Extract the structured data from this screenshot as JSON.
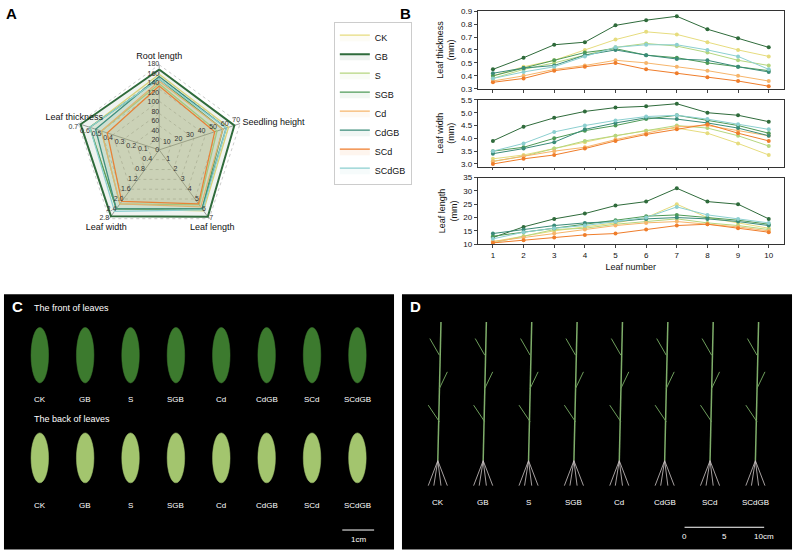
{
  "chart_data": [
    {
      "panel": "A",
      "type": "radar",
      "legend": "right",
      "axes": [
        {
          "name": "Root length",
          "lim": [
            0,
            180
          ],
          "ticks": [
            0,
            20,
            40,
            60,
            80,
            100,
            120,
            140,
            160,
            180
          ]
        },
        {
          "name": "Seedling height",
          "lim": [
            0,
            70
          ],
          "ticks": [
            10,
            20,
            30,
            40,
            50,
            60,
            70
          ]
        },
        {
          "name": "Leaf length",
          "lim": [
            0,
            7
          ],
          "ticks": [
            1,
            2,
            3,
            4,
            5,
            6,
            7
          ]
        },
        {
          "name": "Leaf width",
          "lim": [
            0,
            2.8
          ],
          "ticks": [
            0.4,
            0.8,
            1.2,
            1.6,
            {
              "value": 2,
              "label": "2.0"
            },
            2.4,
            2.8
          ]
        },
        {
          "name": "Leaf thickness",
          "lim": [
            0,
            0.7
          ],
          "ticks": [
            0.1,
            0.2,
            0.3,
            0.4,
            0.5,
            0.6,
            0.7
          ]
        }
      ],
      "series": [
        {
          "name": "CK",
          "color": "#e6dc7e",
          "values": [
            160,
            60,
            6.2,
            2.4,
            0.6
          ]
        },
        {
          "name": "GB",
          "color": "#2f6b3b",
          "values": [
            170,
            65,
            6.8,
            2.7,
            0.68
          ]
        },
        {
          "name": "S",
          "color": "#b5d67f",
          "values": [
            140,
            50,
            5.6,
            2.2,
            0.5
          ]
        },
        {
          "name": "SGB",
          "color": "#4e9a57",
          "values": [
            150,
            55,
            6.0,
            2.4,
            0.6
          ]
        },
        {
          "name": "Cd",
          "color": "#f6b56b",
          "values": [
            145,
            55,
            5.8,
            2.2,
            0.5
          ]
        },
        {
          "name": "CdGB",
          "color": "#3a8b78",
          "values": [
            155,
            58,
            6.0,
            2.4,
            0.55
          ]
        },
        {
          "name": "SCd",
          "color": "#ef7d2b",
          "values": [
            135,
            48,
            5.5,
            2.1,
            0.45
          ]
        },
        {
          "name": "SCdGB",
          "color": "#8ccfd0",
          "values": [
            150,
            58,
            6.1,
            2.5,
            0.6
          ]
        }
      ]
    },
    {
      "panel": "B",
      "type": "line",
      "marker": "circle",
      "x": [
        1,
        2,
        3,
        4,
        5,
        6,
        7,
        8,
        9,
        10
      ],
      "xlabel": "Leaf number",
      "xlim": [
        0.5,
        10.5
      ],
      "xticks": [
        1,
        2,
        3,
        4,
        5,
        6,
        7,
        8,
        9,
        10
      ],
      "subplots": [
        {
          "ylabel": "Leaf thickness (mm)",
          "ylim": [
            0.3,
            0.9
          ],
          "yticks": [
            0.3,
            0.4,
            0.5,
            0.6,
            0.7,
            0.8,
            0.9
          ],
          "series": [
            {
              "name": "CK",
              "color": "#e6dc7e",
              "values": [
                0.4,
                0.47,
                0.52,
                0.6,
                0.68,
                0.74,
                0.72,
                0.66,
                0.6,
                0.55
              ]
            },
            {
              "name": "GB",
              "color": "#2f6b3b",
              "values": [
                0.45,
                0.54,
                0.64,
                0.66,
                0.79,
                0.83,
                0.86,
                0.76,
                0.69,
                0.62
              ]
            },
            {
              "name": "S",
              "color": "#b5d67f",
              "values": [
                0.38,
                0.45,
                0.5,
                0.56,
                0.62,
                0.65,
                0.63,
                0.58,
                0.52,
                0.48
              ]
            },
            {
              "name": "SGB",
              "color": "#4e9a57",
              "values": [
                0.4,
                0.46,
                0.52,
                0.58,
                0.61,
                0.56,
                0.54,
                0.5,
                0.47,
                0.44
              ]
            },
            {
              "name": "Cd",
              "color": "#f6b56b",
              "values": [
                0.36,
                0.4,
                0.45,
                0.48,
                0.52,
                0.5,
                0.47,
                0.44,
                0.4,
                0.36
              ]
            },
            {
              "name": "CdGB",
              "color": "#3a8b78",
              "values": [
                0.42,
                0.46,
                0.48,
                0.56,
                0.6,
                0.56,
                0.53,
                0.52,
                0.47,
                0.43
              ]
            },
            {
              "name": "SCd",
              "color": "#ef7d2b",
              "values": [
                0.35,
                0.38,
                0.44,
                0.47,
                0.5,
                0.45,
                0.42,
                0.39,
                0.36,
                0.32
              ]
            },
            {
              "name": "SCdGB",
              "color": "#8ccfd0",
              "values": [
                0.38,
                0.43,
                0.47,
                0.55,
                0.62,
                0.64,
                0.64,
                0.6,
                0.55,
                0.45
              ]
            }
          ]
        },
        {
          "ylabel": "Leaf width (mm)",
          "ylim": [
            2.9,
            5.5
          ],
          "yticks": [
            {
              "value": 3,
              "label": "3.0"
            },
            3.5,
            {
              "value": 4,
              "label": "4.0"
            },
            4.5,
            {
              "value": 5,
              "label": "5.0"
            },
            5.5
          ],
          "series": [
            {
              "name": "CK",
              "color": "#e6dc7e",
              "values": [
                3.2,
                3.35,
                3.6,
                3.85,
                4.1,
                4.3,
                4.4,
                4.2,
                3.8,
                3.35
              ]
            },
            {
              "name": "GB",
              "color": "#2f6b3b",
              "values": [
                3.9,
                4.45,
                4.8,
                5.05,
                5.2,
                5.25,
                5.35,
                5.0,
                4.9,
                4.65
              ]
            },
            {
              "name": "S",
              "color": "#b5d67f",
              "values": [
                3.1,
                3.3,
                3.6,
                3.9,
                4.1,
                4.3,
                4.5,
                4.4,
                4.1,
                3.7
              ]
            },
            {
              "name": "SGB",
              "color": "#4e9a57",
              "values": [
                3.5,
                3.65,
                4.0,
                4.3,
                4.5,
                4.75,
                4.9,
                4.7,
                4.5,
                4.2
              ]
            },
            {
              "name": "Cd",
              "color": "#f6b56b",
              "values": [
                3.1,
                3.3,
                3.5,
                3.65,
                3.95,
                4.2,
                4.45,
                4.5,
                4.3,
                4.1
              ]
            },
            {
              "name": "CdGB",
              "color": "#3a8b78",
              "values": [
                3.4,
                3.6,
                3.85,
                4.35,
                4.6,
                4.8,
                4.75,
                4.6,
                4.4,
                4.1
              ]
            },
            {
              "name": "SCd",
              "color": "#ef7d2b",
              "values": [
                3.0,
                3.2,
                3.35,
                3.6,
                3.9,
                4.15,
                4.35,
                4.55,
                4.2,
                3.9
              ]
            },
            {
              "name": "SCdGB",
              "color": "#8ccfd0",
              "values": [
                3.5,
                3.8,
                4.25,
                4.5,
                4.7,
                4.85,
                4.9,
                4.75,
                4.55,
                4.35
              ]
            }
          ]
        },
        {
          "ylabel": "Leaf length (mm)",
          "ylim": [
            10,
            35
          ],
          "yticks": [
            10,
            15,
            20,
            25,
            30,
            35
          ],
          "series": [
            {
              "name": "CK",
              "color": "#e6dc7e",
              "values": [
                11,
                13,
                15,
                16.5,
                18,
                20,
                25,
                20,
                18,
                16
              ]
            },
            {
              "name": "GB",
              "color": "#2f6b3b",
              "values": [
                12.5,
                16.5,
                19.5,
                21.5,
                24.5,
                26,
                31,
                26,
                25,
                19.5
              ]
            },
            {
              "name": "S",
              "color": "#b5d67f",
              "values": [
                10.5,
                13,
                15.5,
                16,
                17.5,
                18.5,
                19.5,
                18,
                17,
                15.5
              ]
            },
            {
              "name": "SGB",
              "color": "#4e9a57",
              "values": [
                13,
                14.5,
                16,
                17.5,
                19,
                20.5,
                21,
                20,
                19,
                17.5
              ]
            },
            {
              "name": "Cd",
              "color": "#f6b56b",
              "values": [
                11,
                12.5,
                14,
                15.5,
                17,
                18,
                18.5,
                17.5,
                16.5,
                15
              ]
            },
            {
              "name": "CdGB",
              "color": "#3a8b78",
              "values": [
                14,
                15.5,
                17,
                18,
                18.5,
                19.5,
                20,
                19.5,
                18.5,
                17
              ]
            },
            {
              "name": "SCd",
              "color": "#ef7d2b",
              "values": [
                10.5,
                11.5,
                12.5,
                13.5,
                14,
                15.5,
                17,
                17.5,
                16,
                14.5
              ]
            },
            {
              "name": "SCdGB",
              "color": "#8ccfd0",
              "values": [
                12,
                14.5,
                16,
                17,
                18.5,
                20,
                24,
                21,
                19.5,
                18
              ]
            }
          ]
        }
      ]
    }
  ],
  "images": [
    {
      "panel": "C",
      "rows": [
        {
          "title": "The front of leaves",
          "labels": [
            "CK",
            "GB",
            "S",
            "SGB",
            "Cd",
            "CdGB",
            "SCd",
            "SCdGB"
          ]
        },
        {
          "title": "The back of leaves",
          "labels": [
            "CK",
            "GB",
            "S",
            "SGB",
            "Cd",
            "CdGB",
            "SCd",
            "SCdGB"
          ]
        }
      ],
      "scale_bar": "1cm"
    },
    {
      "panel": "D",
      "labels": [
        "CK",
        "GB",
        "S",
        "SGB",
        "Cd",
        "CdGB",
        "SCd",
        "SCdGB"
      ],
      "scale_bar": [
        "0",
        "5",
        "10cm"
      ]
    }
  ]
}
